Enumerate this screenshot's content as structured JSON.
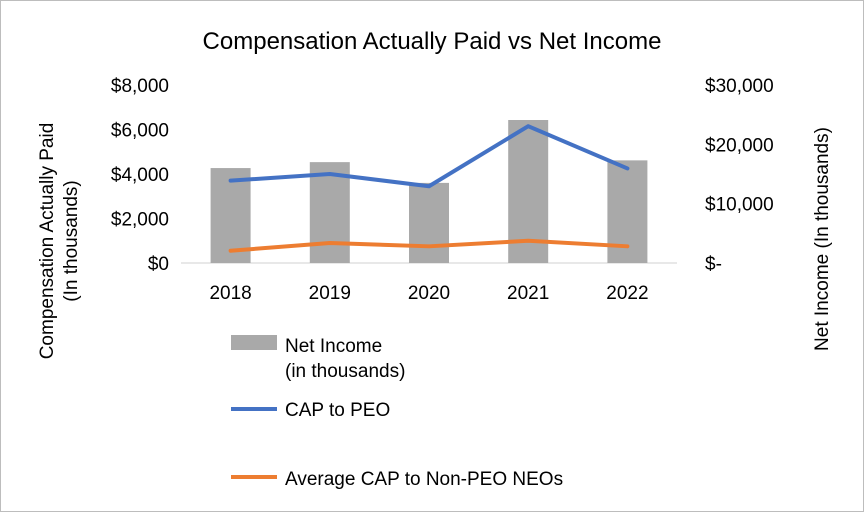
{
  "chart_data": {
    "type": "bar+line",
    "title": "Compensation Actually Paid vs Net Income",
    "categories": [
      "2018",
      "2019",
      "2020",
      "2021",
      "2022"
    ],
    "y_left": {
      "label_line1": "Compensation  Actually Paid",
      "label_line2": "(In thousands)",
      "ylim": [
        0,
        8000
      ],
      "ticks": [
        {
          "value": 0,
          "label": "$0"
        },
        {
          "value": 2000,
          "label": "$2,000"
        },
        {
          "value": 4000,
          "label": "$4,000"
        },
        {
          "value": 6000,
          "label": "$6,000"
        },
        {
          "value": 8000,
          "label": "$8,000"
        }
      ]
    },
    "y_right": {
      "label": "Net Income (In thousands)",
      "ylim": [
        0,
        30000
      ],
      "ticks": [
        {
          "value": 0,
          "label": "$-"
        },
        {
          "value": 10000,
          "label": "$10,000"
        },
        {
          "value": 20000,
          "label": "$20,000"
        },
        {
          "value": 30000,
          "label": "$30,000"
        }
      ]
    },
    "series": [
      {
        "name": "Net Income (in thousands)",
        "legend_line1": "Net Income",
        "legend_line2": "(in thousands)",
        "kind": "bar",
        "axis": "right",
        "color": "#a9a9a9",
        "values": [
          16000,
          17000,
          13500,
          24100,
          17300
        ]
      },
      {
        "name": "CAP to PEO",
        "kind": "line",
        "axis": "left",
        "color": "#4472c4",
        "values": [
          3700,
          4000,
          3450,
          6150,
          4250
        ]
      },
      {
        "name": "Average CAP to Non-PEO NEOs",
        "kind": "line",
        "axis": "left",
        "color": "#ed7d31",
        "values": [
          550,
          900,
          750,
          1000,
          750
        ]
      }
    ],
    "legend_position": "bottom-center"
  }
}
